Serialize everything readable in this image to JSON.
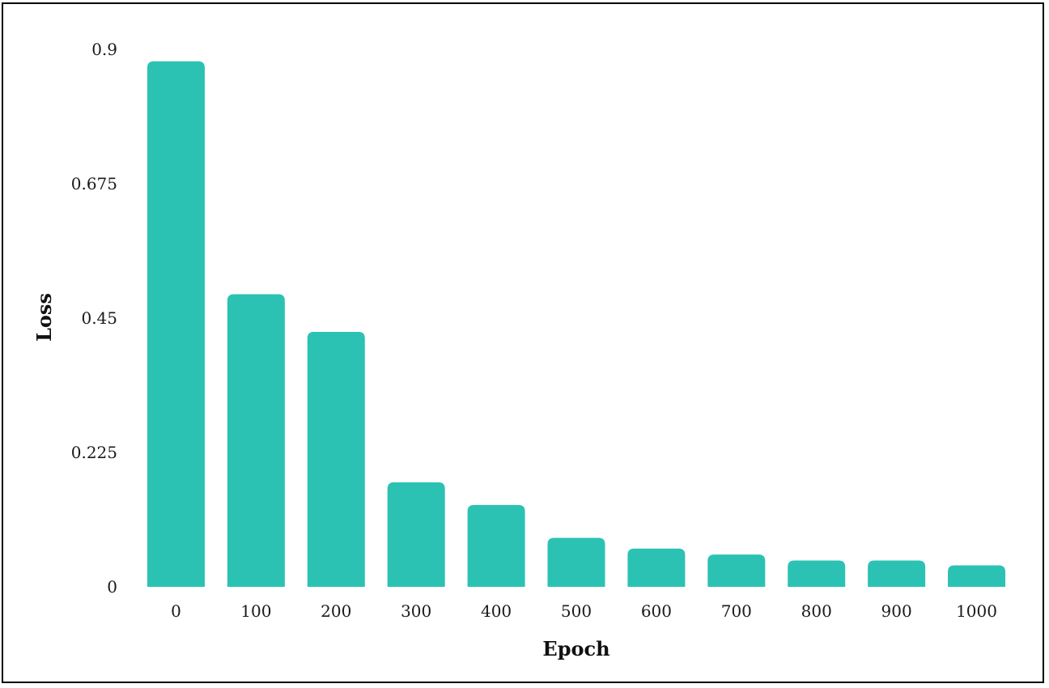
{
  "chart_data": {
    "type": "bar",
    "categories": [
      "0",
      "100",
      "200",
      "300",
      "400",
      "500",
      "600",
      "700",
      "800",
      "900",
      "1000"
    ],
    "values": [
      0.88,
      0.49,
      0.427,
      0.175,
      0.137,
      0.082,
      0.064,
      0.054,
      0.044,
      0.044,
      0.036
    ],
    "title": "",
    "xlabel": "Epoch",
    "ylabel": "Loss",
    "ylim": [
      0,
      0.9
    ],
    "yticks": [
      "0",
      "0.225",
      "0.45",
      "0.675",
      "0.9"
    ],
    "ytick_values": [
      0,
      0.225,
      0.45,
      0.675,
      0.9
    ],
    "grid": false,
    "legend": "none",
    "bar_color": "#2bc2b3"
  }
}
